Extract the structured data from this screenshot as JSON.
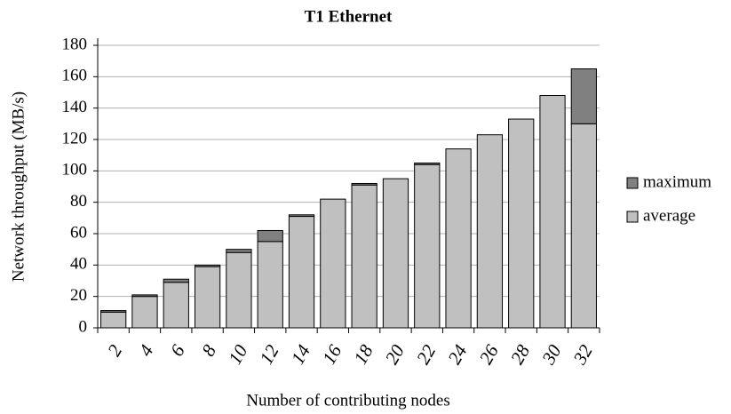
{
  "chart_data": {
    "type": "stacked_bar",
    "title": "T1 Ethernet",
    "x_label": "Number of contributing nodes",
    "y_label": "Network throughput (MB/s)",
    "categories": [
      "2",
      "4",
      "6",
      "8",
      "10",
      "12",
      "14",
      "16",
      "18",
      "20",
      "22",
      "24",
      "26",
      "28",
      "30",
      "32"
    ],
    "series": [
      {
        "name": "average",
        "color": "#c0c0c0",
        "values": [
          10,
          20,
          29,
          39,
          48,
          55,
          71,
          82,
          91,
          95,
          104,
          114,
          123,
          133,
          148,
          130
        ]
      },
      {
        "name": "maximum",
        "color": "#808080",
        "values": [
          1,
          1,
          2,
          1,
          2,
          7,
          1,
          0,
          1,
          0,
          1,
          0,
          0,
          0,
          0,
          35
        ]
      }
    ],
    "ylim": [
      0,
      190
    ],
    "yticks": [
      0,
      20,
      40,
      60,
      80,
      100,
      120,
      140,
      160,
      180
    ],
    "grid": true,
    "legend": "right"
  }
}
